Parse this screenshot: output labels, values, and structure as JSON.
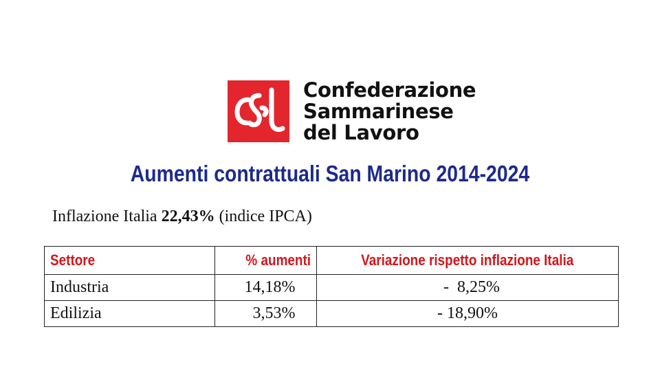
{
  "logo": {
    "icon": "csdl-logo-icon",
    "color": "#e3262d",
    "lines": [
      "Confederazione",
      "Sammarinese",
      "del Lavoro"
    ]
  },
  "title": "Aumenti contrattuali San Marino 2014-2024",
  "inflation": {
    "prefix": "Inflazione Italia ",
    "value": "22,43%",
    "suffix": " (indice IPCA)"
  },
  "table": {
    "headers": [
      "Settore",
      "% aumenti",
      "Variazione rispetto inflazione Italia"
    ],
    "rows": [
      {
        "sector": "Industria",
        "increase": "  14,18%",
        "variation": "  -  8,25%"
      },
      {
        "sector": "Edilizia",
        "increase": "    3,53%",
        "variation": "- 18,90%"
      }
    ]
  },
  "colors": {
    "title": "#1c2a8c",
    "header_text": "#d4151c"
  }
}
